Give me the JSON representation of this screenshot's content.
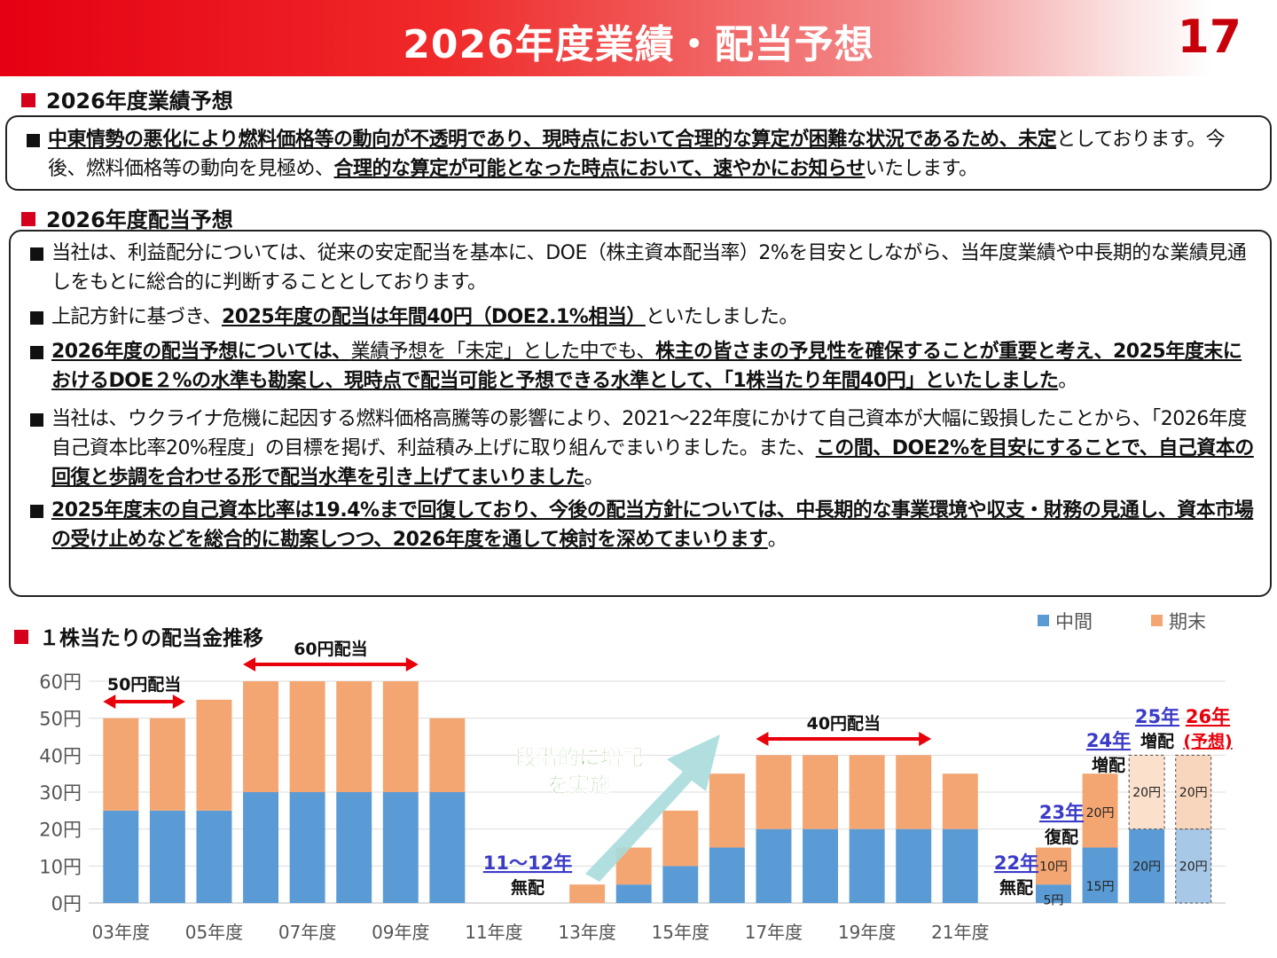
{
  "header": {
    "title": "2026年度業績・配当予想",
    "page_number": "17"
  },
  "section1": {
    "title": "2026年度業績予想",
    "paragraphs": [
      [
        {
          "t": "中東情勢の悪化により燃料価格等の動向が不透明であり、現時点において合理的な算定が困難な状況であるため、未定",
          "s": "b"
        },
        {
          "t": "としております。今後、燃料価格等の動向を見極め、",
          "s": ""
        },
        {
          "t": "合理的な算定が可能となった時点において、速やかにお知らせ",
          "s": "b"
        },
        {
          "t": "いたします。",
          "s": ""
        }
      ]
    ]
  },
  "section2": {
    "title": "2026年度配当予想",
    "paragraphs": [
      [
        {
          "t": "当社は、利益配分については、従来の安定配当を基本に、DOE（株主資本配当率）2%を目安としながら、当年度業績や中長期的な業績見通しをもとに総合的に判断することとしております。",
          "s": ""
        }
      ],
      [
        {
          "t": "上記方針に基づき、",
          "s": ""
        },
        {
          "t": "2025年度の配当は年間40円（DOE2.1%相当）",
          "s": "b"
        },
        {
          "t": "といたしました。",
          "s": ""
        }
      ],
      [
        {
          "t": "2026年度の配当予想については、",
          "s": "b"
        },
        {
          "t": "業績予想を「未定」とした中でも、",
          "s": "u"
        },
        {
          "t": "株主の皆さまの予見性を確保することが重要と考え、2025年度末におけるDOE２%の水準も勘案し、現時点で配当可能と予想できる水準として、「1株当たり年間40円」といたしました",
          "s": "b"
        },
        {
          "t": "。",
          "s": ""
        }
      ],
      [
        {
          "t": "当社は、ウクライナ危機に起因する燃料価格高騰等の影響により、2021～22年度にかけて自己資本が大幅に毀損したことから、「2026年度自己資本比率20%程度」の目標を掲げ、利益積み上げに取り組んでまいりました。また、",
          "s": ""
        },
        {
          "t": "この間、DOE2%を目安にすることで、自己資本の回復と歩調を合わせる形で配当水準を引き上げてまいりました",
          "s": "b"
        },
        {
          "t": "。",
          "s": ""
        }
      ],
      [
        {
          "t": "2025年度末の自己資本比率は19.4%まで回復しており、今後の配当方針については、中長期的な事業環境や収支・財務の見通し、資本市場の受け止めなどを総合的に勘案しつつ、2026年度を通して検討を深めてまいります",
          "s": "b"
        },
        {
          "t": "。",
          "s": ""
        }
      ]
    ]
  },
  "chart_section": {
    "title": "１株当たりの配当金推移"
  },
  "chart_data": {
    "type": "bar",
    "stacked": true,
    "title": "１株当たりの配当金推移",
    "categories": [
      "03年度",
      "04年度",
      "05年度",
      "06年度",
      "07年度",
      "08年度",
      "09年度",
      "10年度",
      "11年度",
      "12年度",
      "13年度",
      "14年度",
      "15年度",
      "16年度",
      "17年度",
      "18年度",
      "19年度",
      "20年度",
      "21年度",
      "22年度",
      "23年度",
      "24年度",
      "25年度",
      "26年度"
    ],
    "x_tick_labels": [
      "03年度",
      "",
      "05年度",
      "",
      "07年度",
      "",
      "09年度",
      "",
      "11年度",
      "",
      "13年度",
      "",
      "15年度",
      "",
      "17年度",
      "",
      "19年度",
      "",
      "21年度",
      "",
      "",
      "",
      "",
      ""
    ],
    "series": [
      {
        "name": "中間",
        "color": "#5b9bd5",
        "values": [
          25,
          25,
          25,
          30,
          30,
          30,
          30,
          30,
          0,
          0,
          0,
          5,
          10,
          15,
          20,
          20,
          20,
          20,
          20,
          0,
          5,
          15,
          20,
          20
        ]
      },
      {
        "name": "期末",
        "color": "#f4a672",
        "values": [
          25,
          25,
          30,
          30,
          30,
          30,
          30,
          20,
          0,
          0,
          5,
          10,
          15,
          20,
          20,
          20,
          20,
          20,
          15,
          0,
          10,
          20,
          20,
          20
        ]
      }
    ],
    "forecast_index": 23,
    "ylim": [
      0,
      60
    ],
    "y_ticks": [
      "0円",
      "10円",
      "20円",
      "30円",
      "40円",
      "50円",
      "60円"
    ],
    "legend_position": "top-right",
    "grid": true,
    "bar_value_labels": [
      {
        "i": 20,
        "mid": "5円",
        "end": "10円"
      },
      {
        "i": 21,
        "mid": "15円",
        "end": "20円"
      },
      {
        "i": 22,
        "mid": "20円",
        "end": "20円"
      },
      {
        "i": 23,
        "mid": "20円",
        "end": "20円"
      }
    ],
    "annotations": {
      "range_50": "50円配当",
      "range_60": "60円配当",
      "range_40": "40円配当",
      "arrow_text_1": "段階的に増配",
      "arrow_text_2": "を実施",
      "y11_12": "11～12年",
      "y11_12_sub": "無配",
      "y22": "22年",
      "y22_sub": "無配",
      "y23": "23年",
      "y23_sub": "復配",
      "y24": "24年",
      "y24_sub": "増配",
      "y25": "25年",
      "y25_sub": "増配",
      "y26": "26年",
      "y26_sub": "(予想)"
    },
    "colors": {
      "accent_red": "#e8000b",
      "label_blue": "#3b3bc8",
      "arrow_teal": "#a9dcdc",
      "phase_green": "#6ab04c"
    }
  }
}
